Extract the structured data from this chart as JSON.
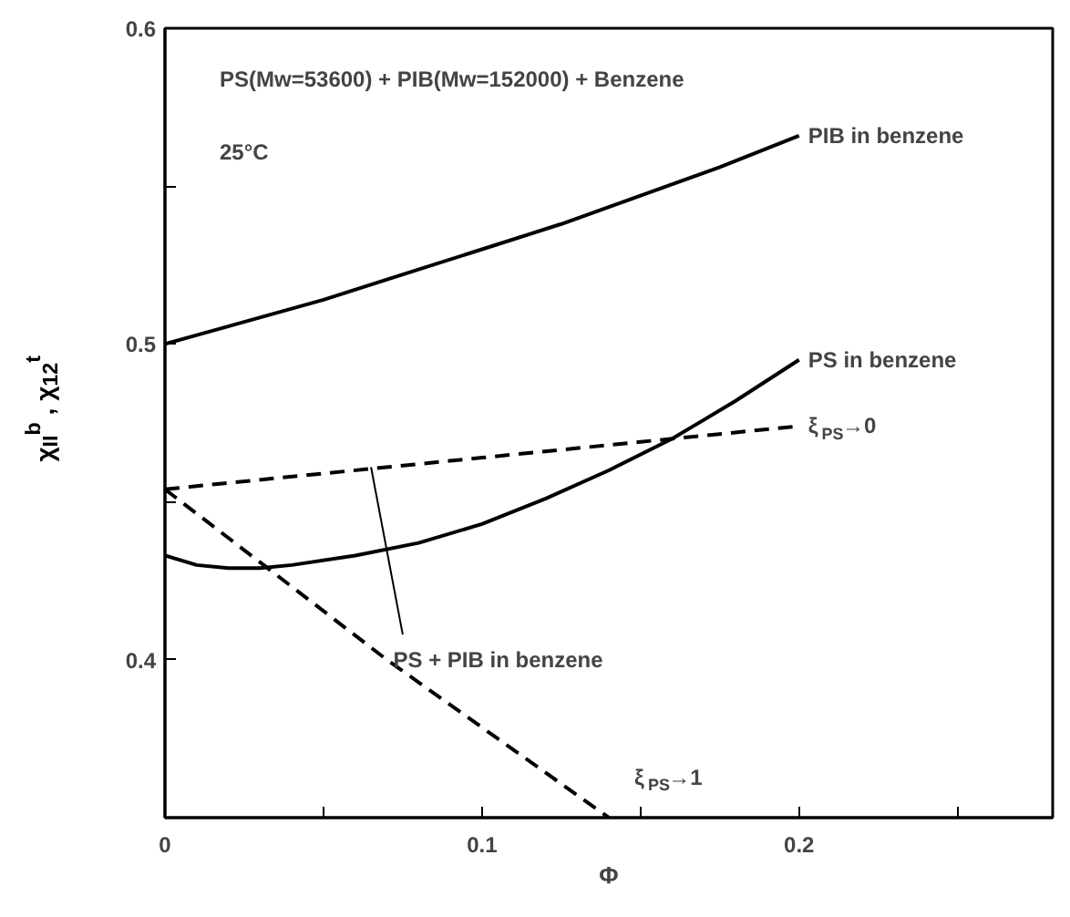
{
  "chart_data": {
    "type": "line",
    "xlabel": "Φ",
    "ylabel": "χ$_{II}$$^{b}$ , χ$_{12}$$^{t}$",
    "xlim": [
      0,
      0.28
    ],
    "ylim": [
      0.35,
      0.6
    ],
    "xticks": [
      0,
      {
        "value": 0.05,
        "label": null
      },
      0.1,
      {
        "value": 0.15,
        "label": null
      },
      0.2,
      {
        "value": 0.25,
        "label": null
      }
    ],
    "yticks": [
      {
        "value": 0.4,
        "label": "0.4"
      },
      {
        "value": 0.45,
        "label": null
      },
      {
        "value": 0.5,
        "label": "0.5"
      },
      {
        "value": 0.55,
        "label": null
      },
      {
        "value": 0.6,
        "label": "0.6"
      }
    ],
    "grid": false,
    "marker": "none",
    "annotations": [
      "PS(Mw=53600) + PIB(Mw=152000) + Benzene",
      "25°C",
      {
        "text": "PS + PIB in benzene",
        "x": 0.065,
        "y": 0.461
      }
    ],
    "series": [
      {
        "name": "PIB in benzene",
        "color": "#000000",
        "line_style": "solid",
        "x": [
          0,
          0.025,
          0.05,
          0.075,
          0.1,
          0.125,
          0.15,
          0.175,
          0.2
        ],
        "values": [
          0.5,
          0.507,
          0.514,
          0.522,
          0.53,
          0.538,
          0.547,
          0.556,
          0.566
        ]
      },
      {
        "name": "PS in benzene",
        "color": "#000000",
        "line_style": "solid",
        "x": [
          0,
          0.01,
          0.02,
          0.03,
          0.04,
          0.06,
          0.08,
          0.1,
          0.12,
          0.14,
          0.16,
          0.18,
          0.2
        ],
        "values": [
          0.433,
          0.43,
          0.429,
          0.429,
          0.43,
          0.433,
          0.437,
          0.443,
          0.451,
          0.46,
          0.47,
          0.482,
          0.495
        ]
      },
      {
        "name": "ξ$_{PS}$→0",
        "color": "#000000",
        "line_style": "dashed",
        "x": [
          0,
          0.05,
          0.1,
          0.15,
          0.2
        ],
        "values": [
          0.454,
          0.459,
          0.464,
          0.469,
          0.474
        ]
      },
      {
        "name": "ξ$_{PS}$→1",
        "color": "#000000",
        "line_style": "dashed",
        "x": [
          0,
          0.035,
          0.07,
          0.105,
          0.14
        ],
        "values": [
          0.454,
          0.427,
          0.4,
          0.375,
          0.35
        ]
      }
    ]
  }
}
